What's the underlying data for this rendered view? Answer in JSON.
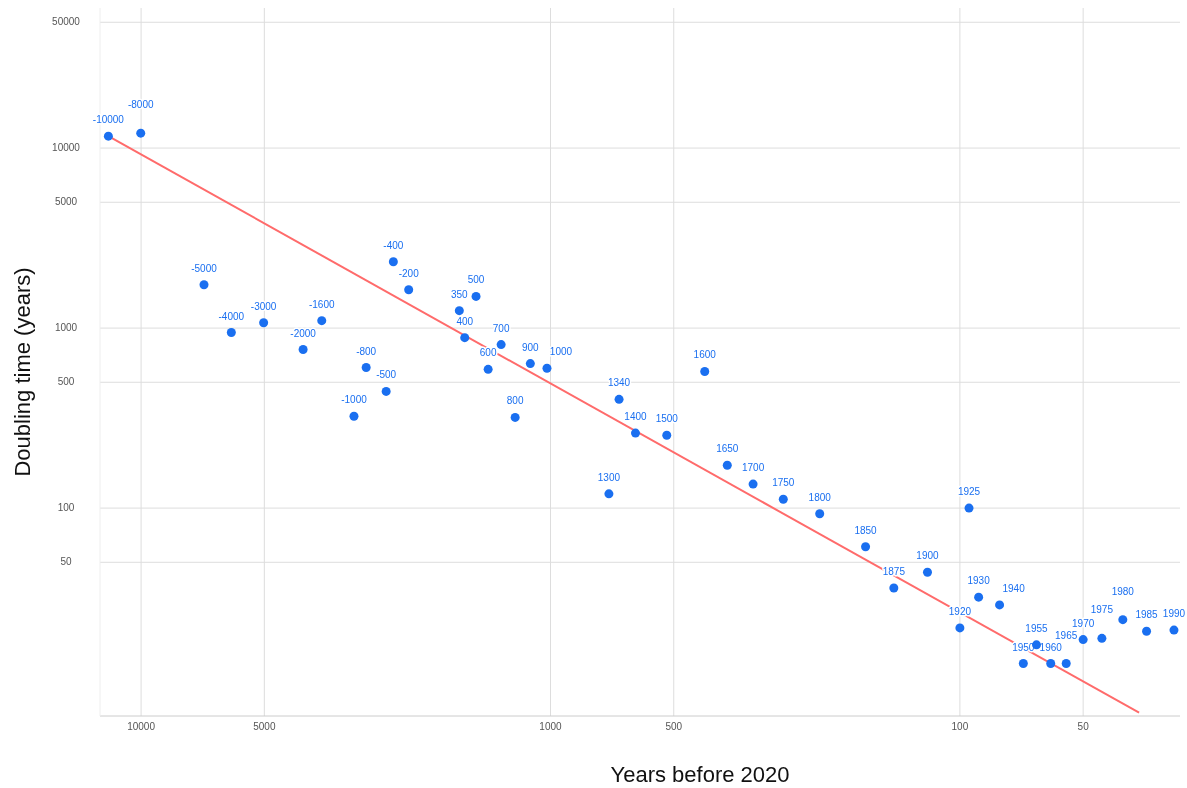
{
  "chart_data": {
    "type": "scatter",
    "xlabel": "Years before 2020",
    "ylabel": "Doubling time (years)",
    "log": "xy",
    "grid": true,
    "marker": "circle",
    "xlim": [
      12600,
      29
    ],
    "xticks": [
      10000,
      5000,
      1000,
      500,
      100,
      50
    ],
    "ylim": [
      7,
      60000
    ],
    "yticks": [
      50000,
      10000,
      5000,
      1000,
      500,
      100,
      50
    ],
    "series": [
      {
        "color": "#1a6ff0",
        "x": [
          12020,
          10020,
          7020,
          6020,
          5020,
          4020,
          3620,
          3020,
          2820,
          2520,
          2420,
          2220,
          1670,
          1620,
          1520,
          1420,
          1320,
          1220,
          1120,
          1020,
          720,
          680,
          620,
          520,
          420,
          370,
          320,
          270,
          220,
          170,
          145,
          120,
          100,
          95,
          90,
          80,
          70,
          65,
          60,
          55,
          50,
          45,
          40,
          35,
          30
        ],
        "values": [
          11650,
          12100,
          1740,
          945,
          1070,
          760,
          1100,
          324,
          604,
          445,
          2335,
          1634,
          1250,
          885,
          1500,
          590,
          810,
          319,
          635,
          598,
          120,
          402,
          261,
          254,
          574,
          173,
          136,
          112,
          93,
          61,
          36,
          44,
          21.6,
          100,
          32,
          29,
          13.7,
          17.4,
          13.7,
          13.7,
          18.6,
          18.9,
          24,
          20.7,
          21
        ]
      },
      {
        "type": "line",
        "marker": "none",
        "color": "#ff6b6b",
        "x": [
          12020,
          36.5
        ],
        "values": [
          11650,
          7.3
        ]
      }
    ],
    "annotations": [
      {
        "text": "-10000",
        "x": 12020,
        "y": 11650
      },
      {
        "text": "-8000",
        "x": 10020,
        "y": 12100
      },
      {
        "text": "-5000",
        "x": 7020,
        "y": 1740
      },
      {
        "text": "-4000",
        "x": 6020,
        "y": 945
      },
      {
        "text": "-3000",
        "x": 5020,
        "y": 1070
      },
      {
        "text": "-2000",
        "x": 4020,
        "y": 760
      },
      {
        "text": "-1600",
        "x": 3620,
        "y": 1100
      },
      {
        "text": "-1000",
        "x": 3020,
        "y": 324
      },
      {
        "text": "-800",
        "x": 2820,
        "y": 604
      },
      {
        "text": "-500",
        "x": 2520,
        "y": 445
      },
      {
        "text": "-400",
        "x": 2420,
        "y": 2335
      },
      {
        "text": "-200",
        "x": 2220,
        "y": 1634
      },
      {
        "text": "350",
        "x": 1670,
        "y": 1250
      },
      {
        "text": "400",
        "x": 1620,
        "y": 885
      },
      {
        "text": "500",
        "x": 1520,
        "y": 1500
      },
      {
        "text": "600",
        "x": 1420,
        "y": 590
      },
      {
        "text": "700",
        "x": 1320,
        "y": 810
      },
      {
        "text": "800",
        "x": 1220,
        "y": 319
      },
      {
        "text": "900",
        "x": 1120,
        "y": 635
      },
      {
        "text": "1000",
        "x": 1020,
        "y": 598
      },
      {
        "text": "1300",
        "x": 720,
        "y": 120
      },
      {
        "text": "1340",
        "x": 680,
        "y": 402
      },
      {
        "text": "1400",
        "x": 620,
        "y": 261
      },
      {
        "text": "1500",
        "x": 520,
        "y": 254
      },
      {
        "text": "1600",
        "x": 420,
        "y": 574
      },
      {
        "text": "1650",
        "x": 370,
        "y": 173
      },
      {
        "text": "1700",
        "x": 320,
        "y": 136
      },
      {
        "text": "1750",
        "x": 270,
        "y": 112
      },
      {
        "text": "1800",
        "x": 220,
        "y": 93
      },
      {
        "text": "1850",
        "x": 170,
        "y": 61
      },
      {
        "text": "1875",
        "x": 145,
        "y": 36
      },
      {
        "text": "1900",
        "x": 120,
        "y": 44
      },
      {
        "text": "1920",
        "x": 100,
        "y": 21.6
      },
      {
        "text": "1925",
        "x": 95,
        "y": 100
      },
      {
        "text": "1930",
        "x": 90,
        "y": 32
      },
      {
        "text": "1940",
        "x": 80,
        "y": 29
      },
      {
        "text": "1950",
        "x": 70,
        "y": 13.7
      },
      {
        "text": "1955",
        "x": 65,
        "y": 17.4
      },
      {
        "text": "1960",
        "x": 60,
        "y": 13.7
      },
      {
        "text": "1965",
        "x": 55,
        "y": 13.7
      },
      {
        "text": "1970",
        "x": 50,
        "y": 18.6
      },
      {
        "text": "1975",
        "x": 45,
        "y": 18.9
      },
      {
        "text": "1980",
        "x": 40,
        "y": 24
      },
      {
        "text": "1985",
        "x": 35,
        "y": 20.7
      },
      {
        "text": "1990",
        "x": 30,
        "y": 21
      }
    ]
  }
}
